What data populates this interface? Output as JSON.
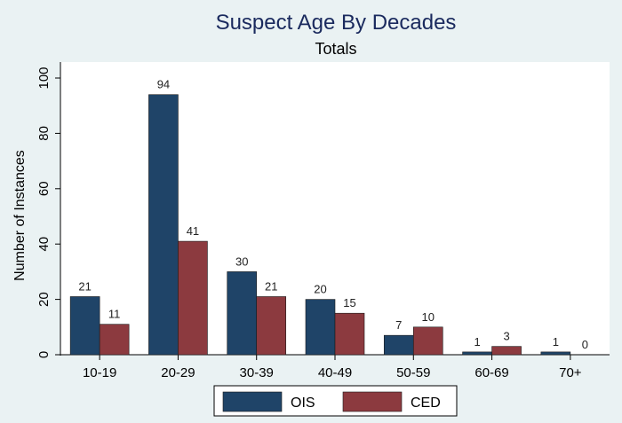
{
  "chart_data": {
    "type": "bar",
    "title": "Suspect Age By Decades",
    "subtitle": "Totals",
    "ylabel": "Number of Instances",
    "xlabel": "",
    "categories": [
      "10-19",
      "20-29",
      "30-39",
      "40-49",
      "50-59",
      "60-69",
      "70+"
    ],
    "series": [
      {
        "name": "OIS",
        "color": "#1f4468",
        "values": [
          21,
          94,
          30,
          20,
          7,
          1,
          1
        ]
      },
      {
        "name": "CED",
        "color": "#8c3a3f",
        "values": [
          11,
          41,
          21,
          15,
          10,
          3,
          0
        ]
      }
    ],
    "ylim": [
      0,
      100
    ],
    "yticks": [
      0,
      20,
      40,
      60,
      80,
      100
    ],
    "grid": false,
    "legend_position": "bottom-center"
  }
}
